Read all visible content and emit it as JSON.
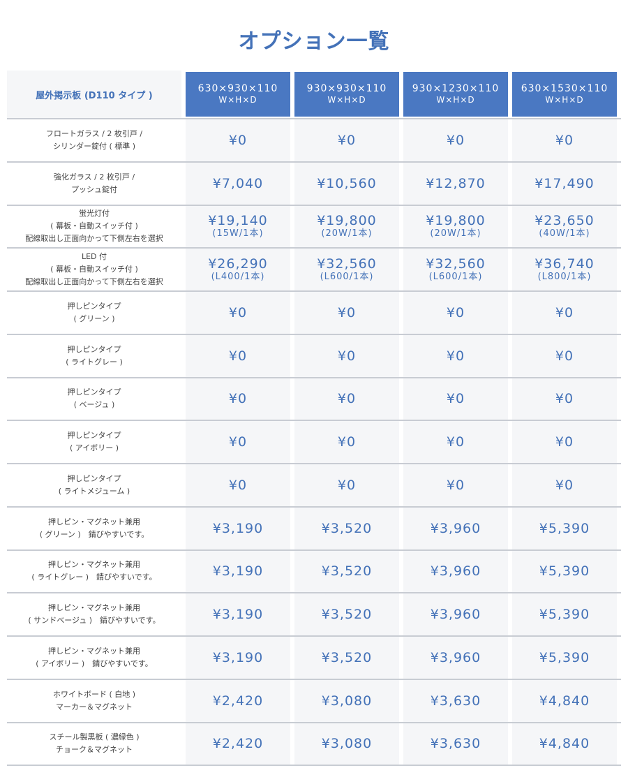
{
  "page": {
    "title": "オプション一覧"
  },
  "header": {
    "label": "屋外掲示板 (D110 タイプ )",
    "columns": [
      {
        "size": "630×930×110",
        "dims": "W×H×D"
      },
      {
        "size": "930×930×110",
        "dims": "W×H×D"
      },
      {
        "size": "930×1230×110",
        "dims": "W×H×D"
      },
      {
        "size": "630×1530×110",
        "dims": "W×H×D"
      }
    ]
  },
  "rows": [
    {
      "label": [
        "フロートガラス / 2 枚引戸 /",
        "シリンダー錠付 ( 標準 )"
      ],
      "prices": [
        {
          "price": "¥0"
        },
        {
          "price": "¥0"
        },
        {
          "price": "¥0"
        },
        {
          "price": "¥0"
        }
      ]
    },
    {
      "label": [
        "強化ガラス / 2 枚引戸 /",
        "プッシュ錠付"
      ],
      "prices": [
        {
          "price": "¥7,040"
        },
        {
          "price": "¥10,560"
        },
        {
          "price": "¥12,870"
        },
        {
          "price": "¥17,490"
        }
      ]
    },
    {
      "label": [
        "蛍光灯付",
        "( 幕板・自動スイッチ付 )",
        "配線取出し正面向かって下側左右を選択"
      ],
      "prices": [
        {
          "price": "¥19,140",
          "sub": "(15W/1本)"
        },
        {
          "price": "¥19,800",
          "sub": "(20W/1本)"
        },
        {
          "price": "¥19,800",
          "sub": "(20W/1本)"
        },
        {
          "price": "¥23,650",
          "sub": "(40W/1本)"
        }
      ]
    },
    {
      "label": [
        "LED 付",
        "( 幕板・自動スイッチ付 )",
        "配線取出し正面向かって下側左右を選択"
      ],
      "prices": [
        {
          "price": "¥26,290",
          "sub": "(L400/1本)"
        },
        {
          "price": "¥32,560",
          "sub": "(L600/1本)"
        },
        {
          "price": "¥32,560",
          "sub": "(L600/1本)"
        },
        {
          "price": "¥36,740",
          "sub": "(L800/1本)"
        }
      ]
    },
    {
      "label": [
        "押しピンタイプ",
        "( グリーン )"
      ],
      "prices": [
        {
          "price": "¥0"
        },
        {
          "price": "¥0"
        },
        {
          "price": "¥0"
        },
        {
          "price": "¥0"
        }
      ]
    },
    {
      "label": [
        "押しピンタイプ",
        "( ライトグレー )"
      ],
      "prices": [
        {
          "price": "¥0"
        },
        {
          "price": "¥0"
        },
        {
          "price": "¥0"
        },
        {
          "price": "¥0"
        }
      ]
    },
    {
      "label": [
        "押しピンタイプ",
        "( ベージュ )"
      ],
      "prices": [
        {
          "price": "¥0"
        },
        {
          "price": "¥0"
        },
        {
          "price": "¥0"
        },
        {
          "price": "¥0"
        }
      ]
    },
    {
      "label": [
        "押しピンタイプ",
        "( アイボリー )"
      ],
      "prices": [
        {
          "price": "¥0"
        },
        {
          "price": "¥0"
        },
        {
          "price": "¥0"
        },
        {
          "price": "¥0"
        }
      ]
    },
    {
      "label": [
        "押しピンタイプ",
        "( ライトメジューム )"
      ],
      "prices": [
        {
          "price": "¥0"
        },
        {
          "price": "¥0"
        },
        {
          "price": "¥0"
        },
        {
          "price": "¥0"
        }
      ]
    },
    {
      "label": [
        "押しピン・マグネット兼用",
        "( グリーン )　錆びやすいです。"
      ],
      "prices": [
        {
          "price": "¥3,190"
        },
        {
          "price": "¥3,520"
        },
        {
          "price": "¥3,960"
        },
        {
          "price": "¥5,390"
        }
      ]
    },
    {
      "label": [
        "押しピン・マグネット兼用",
        "( ライトグレー )　錆びやすいです。"
      ],
      "prices": [
        {
          "price": "¥3,190"
        },
        {
          "price": "¥3,520"
        },
        {
          "price": "¥3,960"
        },
        {
          "price": "¥5,390"
        }
      ]
    },
    {
      "label": [
        "押しピン・マグネット兼用",
        "( サンドベージュ )　錆びやすいです。"
      ],
      "prices": [
        {
          "price": "¥3,190"
        },
        {
          "price": "¥3,520"
        },
        {
          "price": "¥3,960"
        },
        {
          "price": "¥5,390"
        }
      ]
    },
    {
      "label": [
        "押しピン・マグネット兼用",
        "( アイボリー )　錆びやすいです。"
      ],
      "prices": [
        {
          "price": "¥3,190"
        },
        {
          "price": "¥3,520"
        },
        {
          "price": "¥3,960"
        },
        {
          "price": "¥5,390"
        }
      ]
    },
    {
      "label": [
        "ホワイトボード ( 白地 )",
        "マーカー＆マグネット"
      ],
      "prices": [
        {
          "price": "¥2,420"
        },
        {
          "price": "¥3,080"
        },
        {
          "price": "¥3,630"
        },
        {
          "price": "¥4,840"
        }
      ]
    },
    {
      "label": [
        "スチール製黒板 ( 濃緑色 )",
        "チョーク＆マグネット"
      ],
      "prices": [
        {
          "price": "¥2,420"
        },
        {
          "price": "¥3,080"
        },
        {
          "price": "¥3,630"
        },
        {
          "price": "¥4,840"
        }
      ]
    }
  ],
  "colors": {
    "accent": "#4472b8",
    "header_bg": "#4a78c2",
    "cell_bg": "#f5f6f8",
    "divider": "#c8ccd3"
  }
}
